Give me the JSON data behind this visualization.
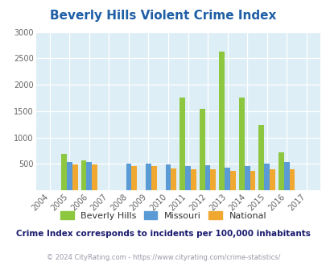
{
  "title": "Beverly Hills Violent Crime Index",
  "years": [
    2004,
    2005,
    2006,
    2007,
    2008,
    2009,
    2010,
    2011,
    2012,
    2013,
    2014,
    2015,
    2016,
    2017
  ],
  "beverly_hills": [
    0,
    680,
    560,
    0,
    0,
    0,
    0,
    1750,
    1550,
    2620,
    1750,
    1240,
    720,
    0
  ],
  "missouri": [
    0,
    530,
    540,
    0,
    510,
    500,
    490,
    455,
    480,
    430,
    465,
    510,
    535,
    0
  ],
  "national": [
    0,
    490,
    490,
    0,
    460,
    450,
    410,
    400,
    395,
    370,
    370,
    390,
    400,
    0
  ],
  "bh_color": "#8dc63f",
  "mo_color": "#5b9bd5",
  "na_color": "#f0a830",
  "bg_color": "#ddeef6",
  "ylim": [
    0,
    3000
  ],
  "yticks": [
    500,
    1000,
    1500,
    2000,
    2500,
    3000
  ],
  "legend_labels": [
    "Beverly Hills",
    "Missouri",
    "National"
  ],
  "footnote1": "Crime Index corresponds to incidents per 100,000 inhabitants",
  "footnote2": "© 2024 CityRating.com - https://www.cityrating.com/crime-statistics/",
  "title_color": "#1f5fa6",
  "footnote1_color": "#1a1a6e",
  "footnote2_color": "#9999aa",
  "bar_width": 0.28
}
